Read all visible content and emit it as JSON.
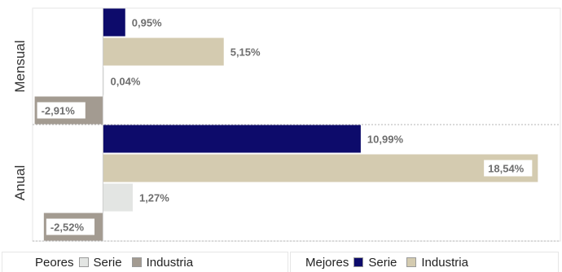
{
  "chart_data": {
    "type": "bar",
    "orientation": "horizontal",
    "categories": [
      "Mensual",
      "Anual"
    ],
    "series": [
      {
        "name": "Serie",
        "group": "Mejores",
        "color": "#0d0b6b",
        "values": [
          0.95,
          10.99
        ]
      },
      {
        "name": "Industria",
        "group": "Mejores",
        "color": "#d4cbb0",
        "values": [
          5.15,
          18.54
        ]
      },
      {
        "name": "Serie",
        "group": "Peores",
        "color": "#e3e5e3",
        "values": [
          0.04,
          1.27
        ]
      },
      {
        "name": "Industria",
        "group": "Peores",
        "color": "#a39b91",
        "values": [
          -2.91,
          -2.52
        ]
      }
    ],
    "data_labels": [
      [
        "0,95%",
        "5,15%",
        "0,04%",
        "-2,91%"
      ],
      [
        "10,99%",
        "18,54%",
        "1,27%",
        "-2,52%"
      ]
    ],
    "xlim": [
      -3.0,
      19.5
    ],
    "grid": false
  },
  "legend": {
    "peores": {
      "title": "Peores",
      "items": [
        "Serie",
        "Industria"
      ],
      "colors": [
        "#e3e5e3",
        "#a39b91"
      ]
    },
    "mejores": {
      "title": "Mejores",
      "items": [
        "Serie",
        "Industria"
      ],
      "colors": [
        "#0d0b6b",
        "#d4cbb0"
      ]
    }
  }
}
